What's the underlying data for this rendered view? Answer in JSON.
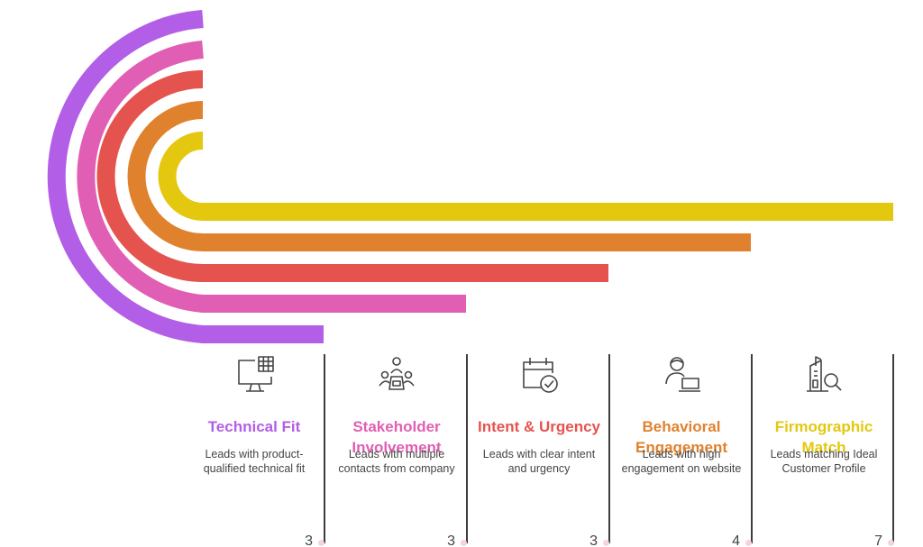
{
  "palette": {
    "purple": "#b35ee6",
    "pink": "#e05fb4",
    "red": "#e5534f",
    "orange": "#e0822d",
    "yellow": "#e3c80f",
    "icon_stroke": "#444444",
    "divider": "#3d3d3d"
  },
  "items": [
    {
      "title": "Technical Fit",
      "description": "Leads with product-qualified technical fit",
      "value": "3",
      "color": "#b35ee6",
      "icon": "monitor-table-icon"
    },
    {
      "title": "Stakeholder Involvement",
      "description": "Leads with multiple contacts from company",
      "value": "3",
      "color": "#e05fb4",
      "icon": "meeting-group-icon"
    },
    {
      "title": "Intent & Urgency",
      "description": "Leads with clear intent and urgency",
      "value": "3",
      "color": "#e5534f",
      "icon": "calendar-check-icon"
    },
    {
      "title": "Behavioral Engagement",
      "description": "Leads with high engagement on website",
      "value": "4",
      "color": "#e0822d",
      "icon": "person-laptop-icon"
    },
    {
      "title": "Firmographic Match",
      "description": "Leads matching Ideal Customer Profile",
      "value": "7",
      "color": "#e3c80f",
      "icon": "building-search-icon"
    }
  ]
}
